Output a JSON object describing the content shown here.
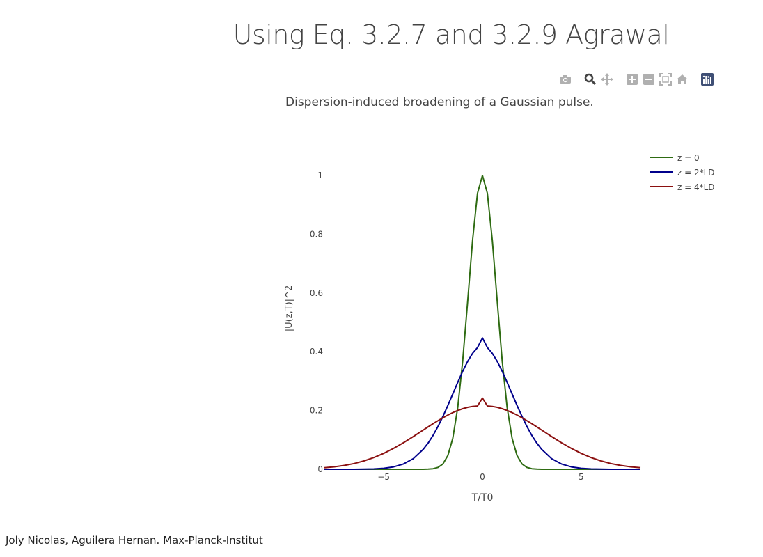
{
  "page": {
    "title": "Using Eq. 3.2.7 and 3.2.9 Agrawal",
    "footer": "Joly Nicolas, Aguilera Hernan. Max-Planck-Institut"
  },
  "modebar": {
    "icons": [
      "camera-icon",
      "zoom-icon",
      "pan-icon",
      "zoom-in-icon",
      "zoom-out-icon",
      "autoscale-icon",
      "reset-axes-icon",
      "plotly-logo-icon"
    ],
    "color": "#b0b0b0",
    "logo_color": "#3f4f75"
  },
  "chart_data": {
    "type": "line",
    "title": "Dispersion-induced broadening of a Gaussian pulse.",
    "xlabel": "T/T0",
    "ylabel": "|U(z,T)|^2",
    "xlim": [
      -8,
      8
    ],
    "ylim": [
      0,
      1
    ],
    "xticks": [
      -5,
      0,
      5
    ],
    "xtick_labels": [
      "−5",
      "0",
      "5"
    ],
    "yticks": [
      0,
      0.2,
      0.4,
      0.6,
      0.8,
      1
    ],
    "ytick_labels": [
      "0",
      "0.2",
      "0.4",
      "0.6",
      "0.8",
      "1"
    ],
    "grid": false,
    "legend_position": "top-right",
    "x": [
      -8,
      -7.5,
      -7,
      -6.5,
      -6,
      -5.5,
      -5,
      -4.5,
      -4,
      -3.5,
      -3,
      -2.75,
      -2.5,
      -2.25,
      -2,
      -1.75,
      -1.5,
      -1.25,
      -1,
      -0.75,
      -0.5,
      -0.25,
      0,
      0.25,
      0.5,
      0.75,
      1,
      1.25,
      1.5,
      1.75,
      2,
      2.25,
      2.5,
      2.75,
      3,
      3.5,
      4,
      4.5,
      5,
      5.5,
      6,
      6.5,
      7,
      7.5,
      8
    ],
    "series": [
      {
        "name": "z = 0",
        "color": "#2e6b12",
        "values": [
          0,
          0,
          0,
          0,
          0,
          0,
          0,
          0,
          0,
          0,
          0.0001,
          0.0005,
          0.0019,
          0.0063,
          0.0183,
          0.0468,
          0.1054,
          0.2096,
          0.3679,
          0.5698,
          0.7788,
          0.9394,
          1,
          0.9394,
          0.7788,
          0.5698,
          0.3679,
          0.2096,
          0.1054,
          0.0468,
          0.0183,
          0.0063,
          0.0019,
          0.0005,
          0.0001,
          0,
          0,
          0,
          0,
          0,
          0,
          0,
          0,
          0,
          0
        ]
      },
      {
        "name": "z = 2*LD",
        "color": "#00008b",
        "values": [
          0,
          0,
          0,
          0,
          0.0004,
          0.0013,
          0.0034,
          0.0081,
          0.0179,
          0.0362,
          0.0677,
          0.0894,
          0.1155,
          0.1459,
          0.1801,
          0.2174,
          0.2565,
          0.2958,
          0.3333,
          0.3669,
          0.3946,
          0.4141,
          0.4472,
          0.4141,
          0.3946,
          0.3669,
          0.3333,
          0.2958,
          0.2565,
          0.2174,
          0.1801,
          0.1459,
          0.1155,
          0.0894,
          0.0677,
          0.0362,
          0.0179,
          0.0081,
          0.0034,
          0.0013,
          0.0004,
          0,
          0,
          0,
          0
        ]
      },
      {
        "name": "z = 4*LD",
        "color": "#8b1010",
        "values": [
          0.0052,
          0.0084,
          0.013,
          0.0195,
          0.0284,
          0.0399,
          0.0541,
          0.071,
          0.0903,
          0.1114,
          0.1334,
          0.1443,
          0.1551,
          0.1655,
          0.1753,
          0.1845,
          0.1928,
          0.2001,
          0.2062,
          0.2109,
          0.214,
          0.2155,
          0.2425,
          0.2155,
          0.214,
          0.2109,
          0.2062,
          0.2001,
          0.1928,
          0.1845,
          0.1753,
          0.1655,
          0.1551,
          0.1443,
          0.1334,
          0.1114,
          0.0903,
          0.071,
          0.0541,
          0.0399,
          0.0284,
          0.0195,
          0.013,
          0.0084,
          0.0052
        ]
      }
    ]
  }
}
